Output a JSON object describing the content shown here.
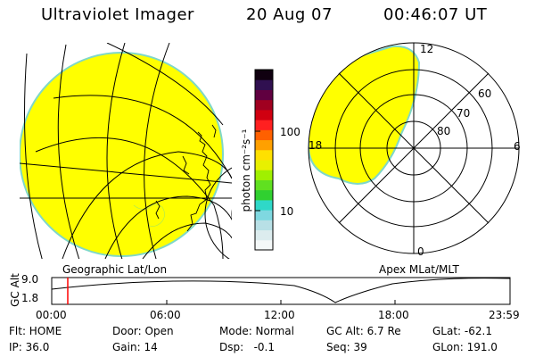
{
  "header": {
    "title": "Ultraviolet Imager",
    "date": "20 Aug 07",
    "time": "00:46:07 UT"
  },
  "colorbar": {
    "unit_label": "photon cm⁻²s⁻¹",
    "ticks": [
      "100",
      "10"
    ],
    "colors": [
      "#f4f8f8",
      "#dcecee",
      "#b8e0e6",
      "#7fd8e0",
      "#2fd8c8",
      "#30d030",
      "#60e020",
      "#a0f000",
      "#e8f000",
      "#ffe000",
      "#ffa000",
      "#ff6000",
      "#ff2020",
      "#d00010",
      "#a00020",
      "#600040",
      "#301050",
      "#100010"
    ]
  },
  "left_map": {
    "caption": "Geographic Lat/Lon",
    "fill_color": "#ffff00"
  },
  "right_map": {
    "caption": "Apex MLat/MLT",
    "fill_color": "#ffff00",
    "mlt_labels": {
      "top": "12",
      "right": "6",
      "bottom": "0",
      "left": "18"
    },
    "lat_labels": [
      "60",
      "70",
      "80"
    ]
  },
  "altitude_plot": {
    "ylabel": "GC Alt",
    "yticks": [
      "9.0",
      "1.8"
    ],
    "xticks": [
      "00:00",
      "06:00",
      "12:00",
      "18:00",
      "23:59"
    ],
    "marker_color": "#ff0000"
  },
  "status": {
    "filter": "Flt: HOME",
    "ip": "IP: 36.0",
    "door": "Door: Open",
    "gain": "Gain: 14",
    "mode": "Mode: Normal",
    "dsp": "Dsp:   -0.1",
    "gc_alt": "GC Alt: 6.7 Re",
    "seq": "Seq: 39",
    "glat": "GLat: -62.1",
    "glon": "GLon: 191.0"
  }
}
